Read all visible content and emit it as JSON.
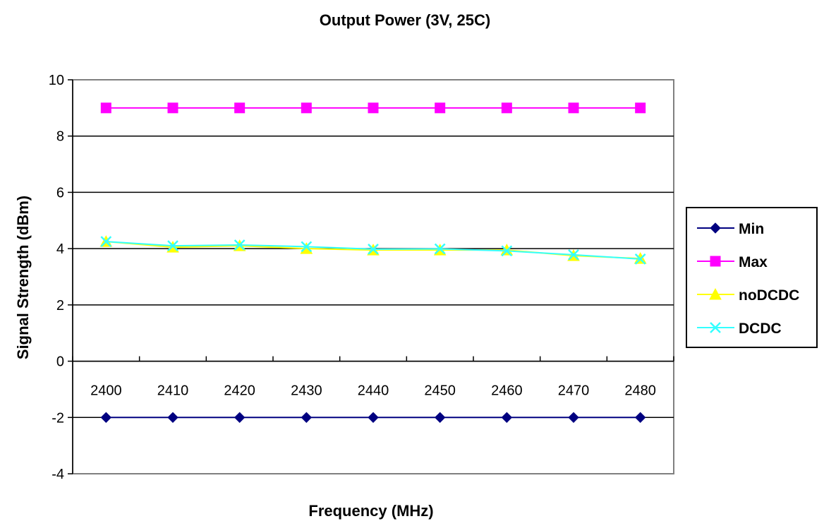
{
  "chart_data": {
    "type": "line",
    "title": "Output Power (3V, 25C)",
    "xlabel": "Frequency (MHz)",
    "ylabel": "Signal Strength (dBm)",
    "categories": [
      "2400",
      "2410",
      "2420",
      "2430",
      "2440",
      "2450",
      "2460",
      "2470",
      "2480"
    ],
    "ylim": [
      -4,
      10
    ],
    "yticks": [
      -4,
      -2,
      0,
      2,
      4,
      6,
      8,
      10
    ],
    "grid": true,
    "legend_position": "right",
    "series": [
      {
        "name": "Min",
        "color": "#000080",
        "marker": "diamond",
        "values": [
          -2,
          -2,
          -2,
          -2,
          -2,
          -2,
          -2,
          -2,
          -2
        ]
      },
      {
        "name": "Max",
        "color": "#ff00ff",
        "marker": "square",
        "values": [
          9,
          9,
          9,
          9,
          9,
          9,
          9,
          9,
          9
        ]
      },
      {
        "name": "noDCDC",
        "color": "#ffff00",
        "marker": "triangle",
        "values": [
          4.25,
          4.05,
          4.1,
          4.0,
          3.95,
          3.95,
          3.95,
          3.75,
          3.65
        ]
      },
      {
        "name": "DCDC",
        "color": "#33ffff",
        "marker": "x",
        "values": [
          4.25,
          4.1,
          4.13,
          4.07,
          3.98,
          3.99,
          3.92,
          3.78,
          3.63
        ]
      }
    ]
  }
}
